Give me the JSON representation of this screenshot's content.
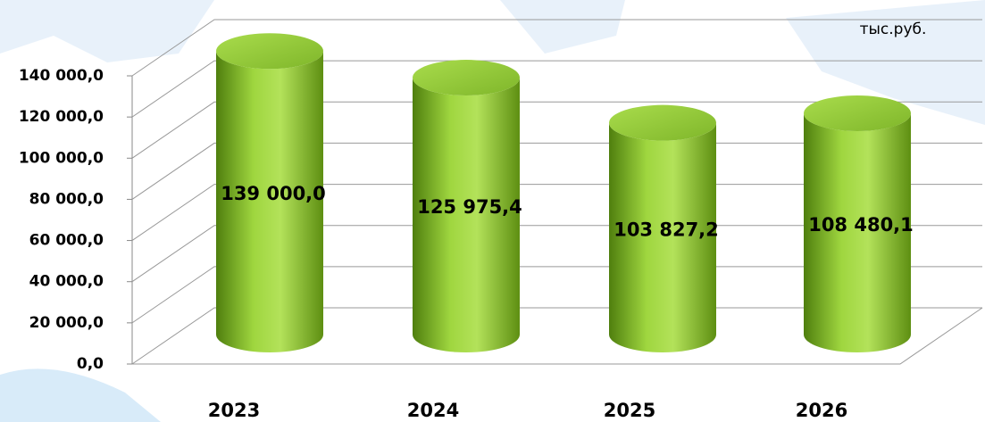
{
  "chart_data": {
    "type": "bar",
    "subtitle": "тыс.руб.",
    "categories": [
      "2023",
      "2024",
      "2025",
      "2026"
    ],
    "values": [
      139000,
      125975.4,
      103827.2,
      108480.1
    ],
    "value_labels": [
      "139 000,0",
      "125 975,4",
      "103 827,2",
      "108 480,1"
    ],
    "color": "#8cc63f",
    "ylim": [
      0,
      140000
    ],
    "yticks": [
      {
        "value": 0,
        "label": "0,0"
      },
      {
        "value": 20000,
        "label": "20 000,0"
      },
      {
        "value": 40000,
        "label": "40 000,0"
      },
      {
        "value": 60000,
        "label": "60 000,0"
      },
      {
        "value": 80000,
        "label": "80 000,0"
      },
      {
        "value": 100000,
        "label": "100 000,0"
      },
      {
        "value": 120000,
        "label": "120 000,0"
      },
      {
        "value": 140000,
        "label": "140 000,0"
      }
    ],
    "grid": true
  }
}
